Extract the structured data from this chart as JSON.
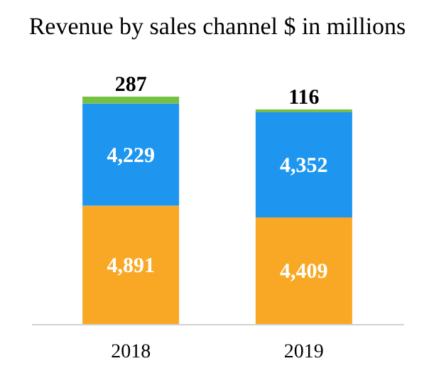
{
  "chart_data": {
    "type": "bar",
    "title": "Revenue by sales channel $ in millions",
    "stacked": true,
    "categories": [
      "2018",
      "2019"
    ],
    "series": [
      {
        "color": "#f9a825",
        "values": [
          4891,
          4409
        ],
        "value_labels": [
          "4,891",
          "4,409"
        ]
      },
      {
        "color": "#1e96f0",
        "values": [
          4229,
          4352
        ],
        "value_labels": [
          "4,229",
          "4,352"
        ]
      },
      {
        "color": "#76c043",
        "values": [
          287,
          116
        ],
        "value_labels": [
          "287",
          "116"
        ]
      }
    ]
  }
}
